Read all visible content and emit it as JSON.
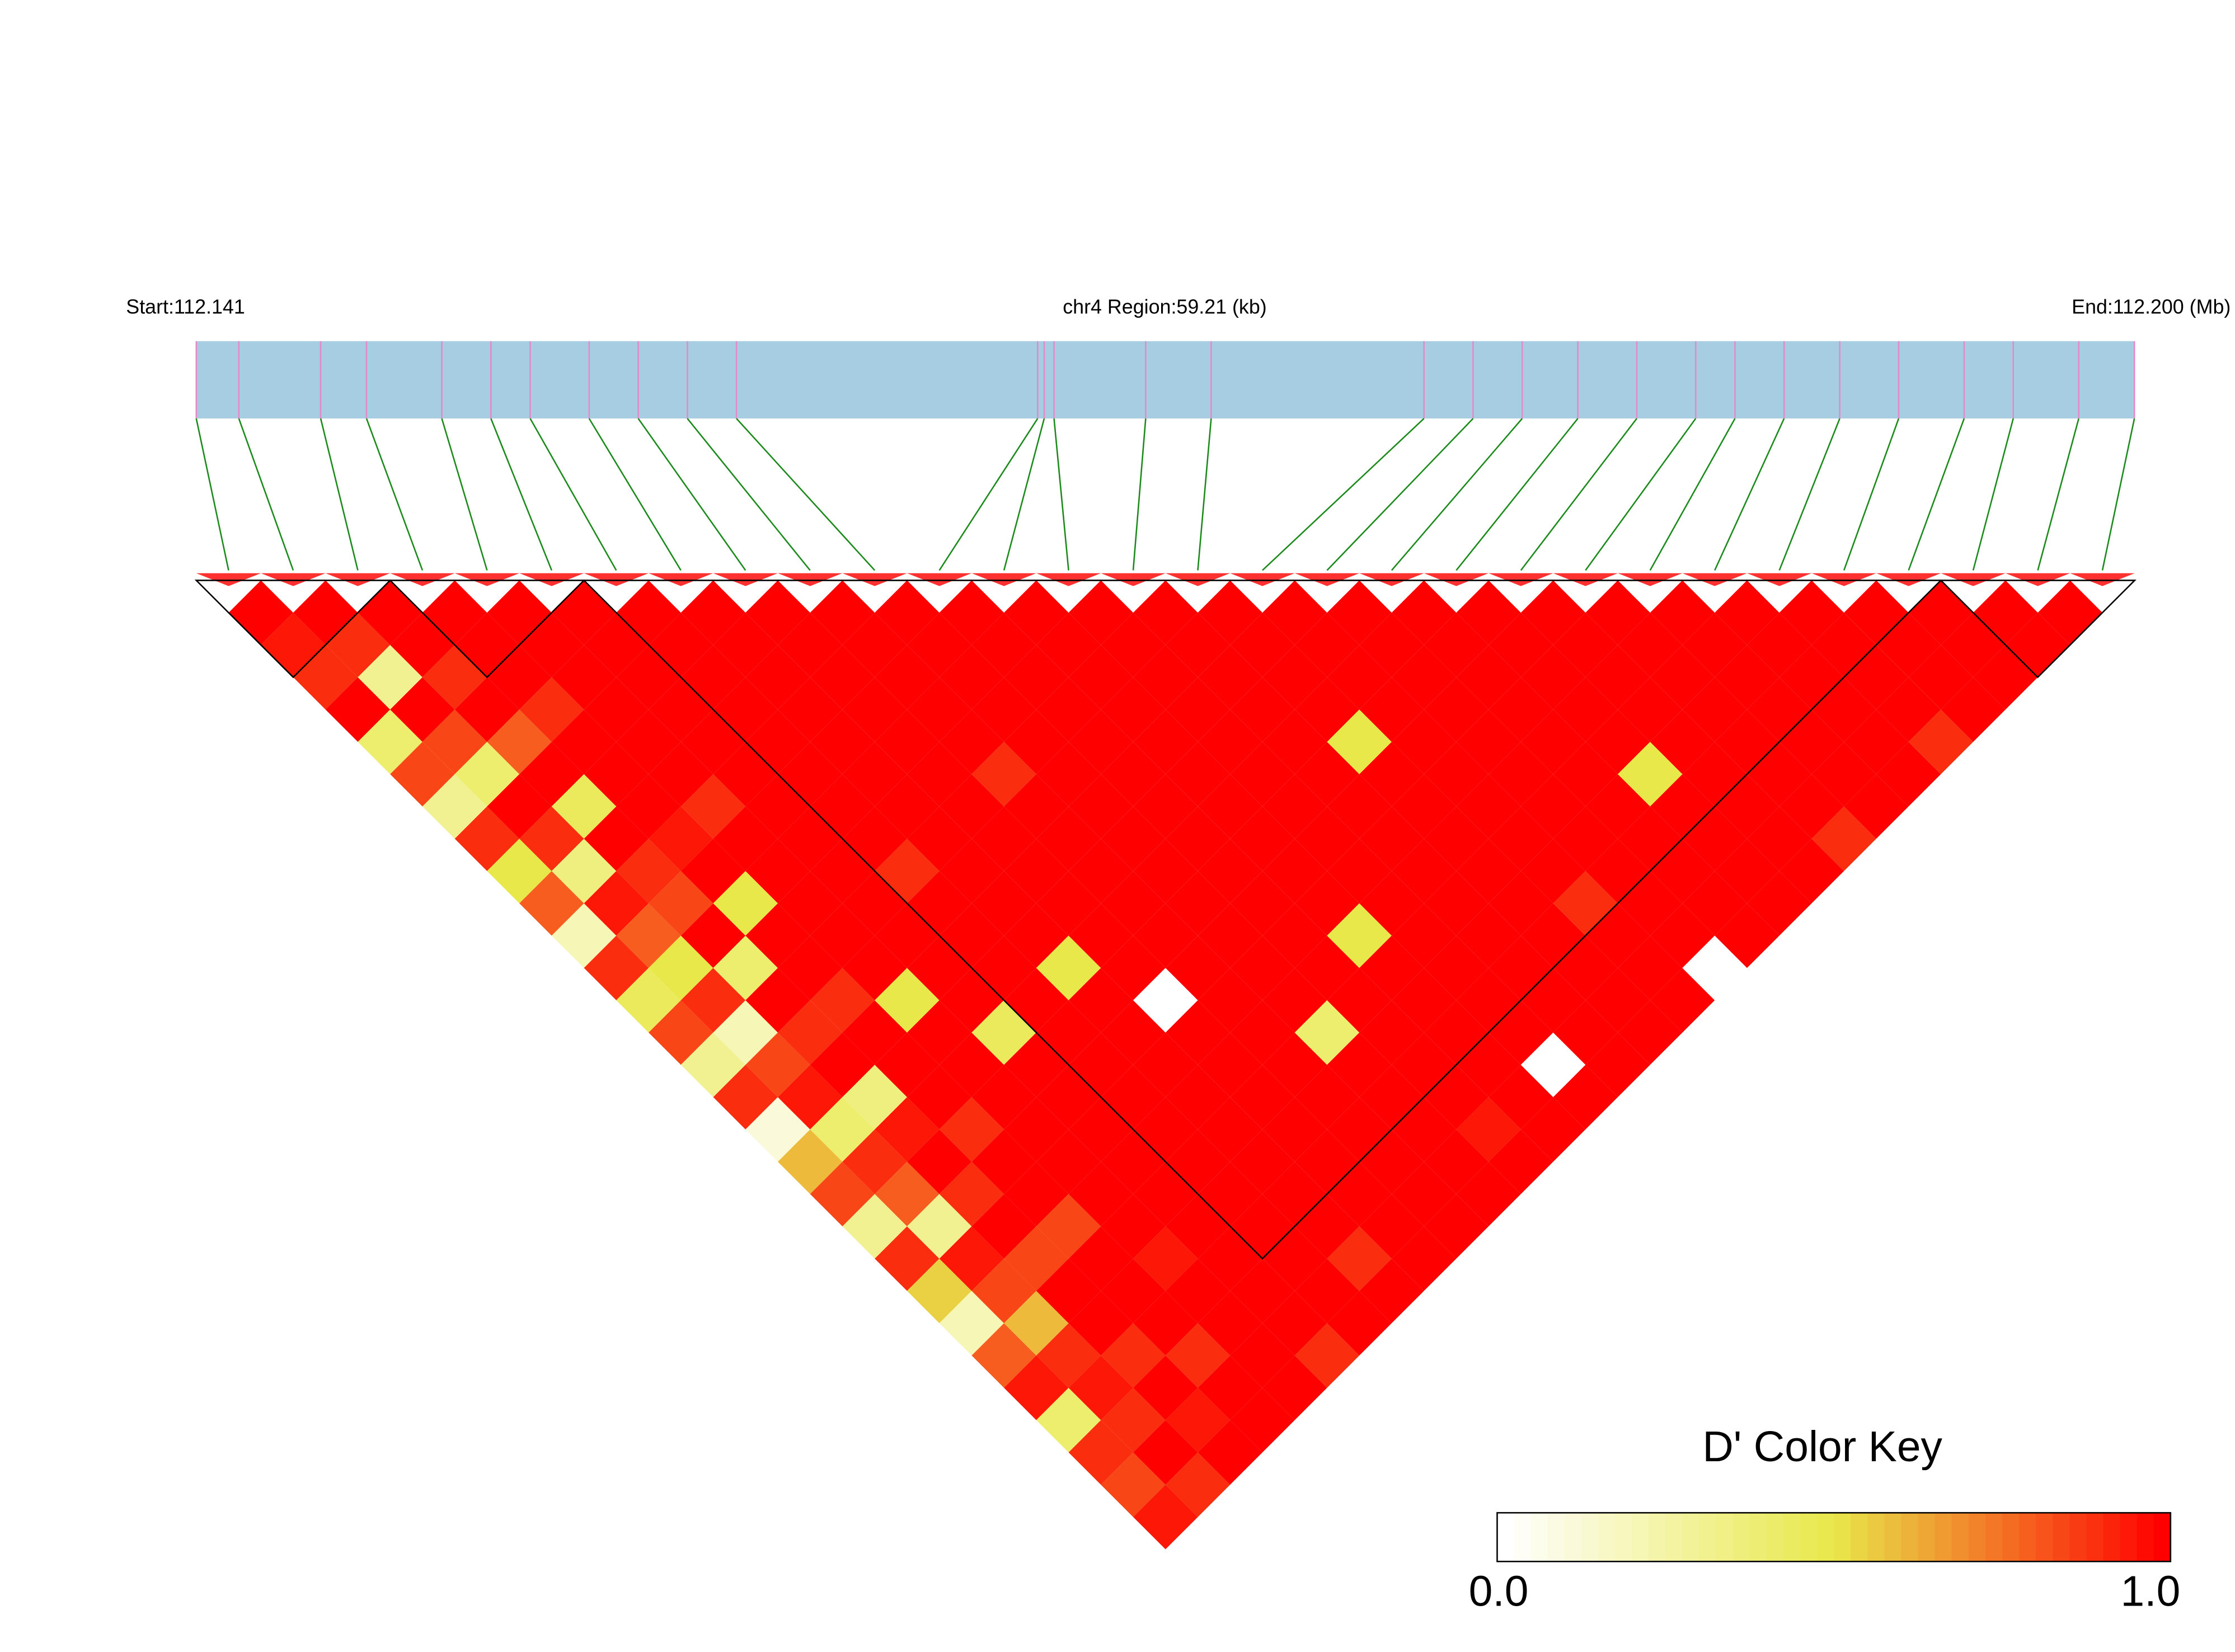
{
  "chart_data": {
    "type": "ld-heatmap",
    "start_label": "Start:112.141",
    "region_label": "chr4 Region:59.21 (kb)",
    "end_label": "End:112.200 (Mb)",
    "xlim": [
      112.141,
      112.20021
    ],
    "positions": [
      112.141,
      112.1423,
      112.1448,
      112.1462,
      112.1485,
      112.15,
      112.1512,
      112.153,
      112.1545,
      112.156,
      112.1575,
      112.1667,
      112.1669,
      112.1672,
      112.17,
      112.172,
      112.1785,
      112.18,
      112.1815,
      112.1832,
      112.185,
      112.1868,
      112.188,
      112.1895,
      112.1912,
      112.193,
      112.195,
      112.1965,
      112.1985,
      112.2002
    ],
    "dprime": [
      [
        1,
        0.95,
        0.9,
        1,
        0.4,
        0.85,
        0.3,
        0.9,
        0.5,
        0.8,
        0.2,
        0.9,
        0.45,
        0.85,
        0.3,
        0.9,
        0.1,
        0.6,
        0.85,
        0.3,
        0.9,
        0.55,
        0.2,
        0.8,
        0.95,
        0.4,
        0.9,
        0.85,
        0.95
      ],
      [
        1,
        0.9,
        0.3,
        1,
        0.85,
        0.4,
        1,
        0.9,
        0.35,
        0.95,
        0.8,
        0.5,
        0.9,
        0.2,
        0.85,
        0.95,
        0.4,
        0.9,
        0.8,
        0.3,
        0.95,
        0.85,
        0.6,
        0.9,
        0.95,
        0.9,
        1,
        0.9
      ],
      [
        1,
        1,
        0.9,
        1,
        0.8,
        1,
        0.45,
        1,
        0.9,
        0.85,
        1,
        0.4,
        1,
        0.9,
        1,
        0.35,
        0.95,
        1,
        0.9,
        1,
        0.85,
        1,
        1,
        0.9,
        1,
        0.95,
        1
      ],
      [
        1,
        1,
        1,
        0.9,
        1,
        1,
        1,
        0.95,
        1,
        0.5,
        1,
        1,
        0.9,
        1,
        1,
        1,
        0.9,
        1,
        1,
        0.85,
        1,
        1,
        1,
        0.9,
        1,
        1
      ],
      [
        1,
        1,
        1,
        1,
        1,
        1,
        0.9,
        1,
        1,
        1,
        1,
        1,
        0.5,
        1,
        1,
        1,
        1,
        1,
        1,
        1,
        0.95,
        1,
        1,
        1,
        1
      ],
      [
        1,
        1,
        1,
        1,
        1,
        1,
        1,
        1,
        1,
        1,
        1,
        1,
        1,
        0.45,
        1,
        1,
        1,
        1,
        1,
        1,
        1,
        1,
        1,
        0.9
      ],
      [
        1,
        1,
        1,
        1,
        1,
        1,
        1,
        1,
        0.9,
        1,
        1,
        1,
        1,
        1,
        1,
        1,
        1,
        1,
        1,
        1,
        1,
        1,
        1
      ],
      [
        1,
        1,
        1,
        1,
        1,
        1,
        1,
        1,
        1,
        1,
        1,
        0.5,
        1,
        1,
        1,
        1,
        1,
        1,
        1,
        1,
        0.9,
        1
      ],
      [
        1,
        1,
        1,
        1,
        1,
        1,
        1,
        1,
        1,
        1,
        1,
        1,
        0,
        1,
        1,
        1,
        1,
        1,
        1,
        1,
        1
      ],
      [
        1,
        1,
        1,
        1,
        1,
        0.9,
        1,
        1,
        1,
        1,
        1,
        1,
        1,
        1,
        1,
        1,
        1,
        1,
        1,
        1
      ],
      [
        1,
        1,
        1,
        1,
        1,
        1,
        1,
        1,
        1,
        1,
        1,
        1,
        1,
        0.4,
        1,
        1,
        1,
        1,
        1
      ],
      [
        1,
        1,
        1,
        1,
        1,
        1,
        1,
        1,
        1,
        1,
        1,
        1,
        1,
        1,
        1,
        1,
        0.95,
        1
      ],
      [
        1,
        1,
        1,
        1,
        1,
        1,
        1,
        1,
        1,
        1,
        0.5,
        1,
        1,
        1,
        1,
        1,
        1
      ],
      [
        1,
        1,
        1,
        1,
        1,
        1,
        1,
        1,
        1,
        1,
        1,
        1,
        1,
        1,
        0,
        1
      ],
      [
        1,
        1,
        1,
        1,
        1,
        1,
        1,
        1,
        1,
        1,
        1,
        1,
        1,
        1,
        1
      ],
      [
        1,
        1,
        1,
        1,
        0.5,
        1,
        1,
        1,
        1,
        1,
        1,
        1,
        1,
        1
      ],
      [
        1,
        1,
        1,
        1,
        1,
        1,
        1,
        1,
        1,
        0.9,
        1,
        1,
        1
      ],
      [
        1,
        1,
        1,
        1,
        1,
        1,
        1,
        1,
        1,
        1,
        1,
        0
      ],
      [
        1,
        1,
        1,
        1,
        1,
        1,
        1,
        1,
        1,
        1,
        1
      ],
      [
        1,
        1,
        1,
        1,
        1,
        0.5,
        1,
        1,
        1,
        1
      ],
      [
        1,
        1,
        1,
        1,
        1,
        1,
        1,
        1,
        1
      ],
      [
        1,
        1,
        1,
        1,
        1,
        1,
        1,
        0.9
      ],
      [
        1,
        1,
        1,
        1,
        1,
        1,
        1
      ],
      [
        1,
        1,
        1,
        1,
        1,
        1
      ],
      [
        1,
        1,
        1,
        1,
        0.9
      ],
      [
        1,
        1,
        1,
        1
      ],
      [
        1,
        1,
        1
      ],
      [
        1,
        1
      ],
      [
        1
      ]
    ],
    "blocks": [
      [
        0,
        2
      ],
      [
        3,
        5
      ],
      [
        6,
        26
      ],
      [
        27,
        29
      ]
    ],
    "key_title": "D' Color Key",
    "key_colors": [
      "#ffffff",
      "#e8e84a",
      "#ff0000"
    ],
    "key_ticks": [
      {
        "value": 0,
        "label": "0.0"
      },
      {
        "value": 1,
        "label": "1.0"
      }
    ]
  }
}
